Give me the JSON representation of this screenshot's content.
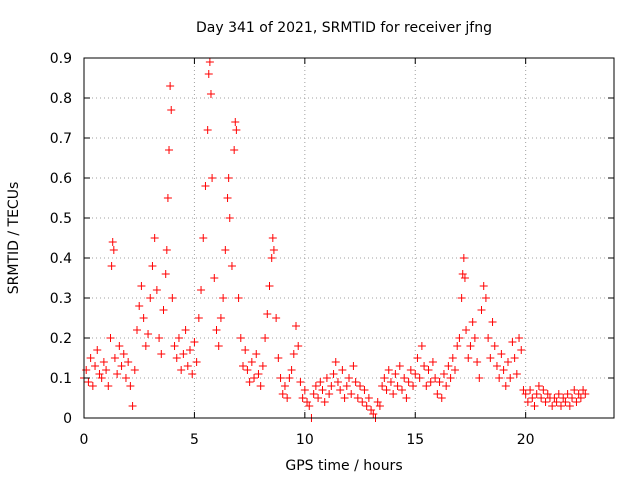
{
  "chart_data": {
    "type": "scatter",
    "title": "Day 341 of 2021, SRMTID for receiver jfng",
    "xlabel": "GPS time / hours",
    "ylabel": "SRMTID / TECUs",
    "xlim": [
      0,
      24
    ],
    "ylim": [
      0,
      0.9
    ],
    "x_ticks": [
      0,
      5,
      10,
      15,
      20
    ],
    "y_ticks": [
      0,
      0.1,
      0.2,
      0.3,
      0.4,
      0.5,
      0.6,
      0.7,
      0.8,
      0.9
    ],
    "x_tick_labels": [
      "0",
      "5",
      "10",
      "15",
      "20"
    ],
    "y_tick_labels": [
      "0",
      "0.1",
      "0.2",
      "0.3",
      "0.4",
      "0.5",
      "0.6",
      "0.7",
      "0.8",
      "0.9"
    ],
    "grid": true,
    "marker": "plus",
    "color": "#ff0000",
    "series": [
      {
        "name": "SRMTID",
        "points": [
          [
            0.0,
            0.1
          ],
          [
            0.1,
            0.12
          ],
          [
            0.2,
            0.09
          ],
          [
            0.3,
            0.15
          ],
          [
            0.4,
            0.08
          ],
          [
            0.5,
            0.13
          ],
          [
            0.6,
            0.17
          ],
          [
            0.7,
            0.11
          ],
          [
            0.8,
            0.1
          ],
          [
            0.9,
            0.14
          ],
          [
            1.0,
            0.12
          ],
          [
            1.1,
            0.08
          ],
          [
            1.2,
            0.2
          ],
          [
            1.25,
            0.38
          ],
          [
            1.3,
            0.44
          ],
          [
            1.35,
            0.42
          ],
          [
            1.4,
            0.15
          ],
          [
            1.5,
            0.11
          ],
          [
            1.6,
            0.18
          ],
          [
            1.7,
            0.13
          ],
          [
            1.8,
            0.16
          ],
          [
            1.9,
            0.1
          ],
          [
            2.0,
            0.14
          ],
          [
            2.1,
            0.08
          ],
          [
            2.2,
            0.03
          ],
          [
            2.3,
            0.12
          ],
          [
            2.4,
            0.22
          ],
          [
            2.5,
            0.28
          ],
          [
            2.6,
            0.33
          ],
          [
            2.7,
            0.25
          ],
          [
            2.8,
            0.18
          ],
          [
            2.9,
            0.21
          ],
          [
            3.0,
            0.3
          ],
          [
            3.1,
            0.38
          ],
          [
            3.2,
            0.45
          ],
          [
            3.3,
            0.32
          ],
          [
            3.4,
            0.2
          ],
          [
            3.5,
            0.16
          ],
          [
            3.6,
            0.27
          ],
          [
            3.7,
            0.36
          ],
          [
            3.75,
            0.42
          ],
          [
            3.8,
            0.55
          ],
          [
            3.85,
            0.67
          ],
          [
            3.9,
            0.83
          ],
          [
            3.95,
            0.77
          ],
          [
            4.0,
            0.3
          ],
          [
            4.1,
            0.18
          ],
          [
            4.2,
            0.15
          ],
          [
            4.3,
            0.2
          ],
          [
            4.4,
            0.12
          ],
          [
            4.5,
            0.16
          ],
          [
            4.6,
            0.22
          ],
          [
            4.7,
            0.13
          ],
          [
            4.8,
            0.17
          ],
          [
            4.9,
            0.11
          ],
          [
            5.0,
            0.19
          ],
          [
            5.1,
            0.14
          ],
          [
            5.2,
            0.25
          ],
          [
            5.3,
            0.32
          ],
          [
            5.4,
            0.45
          ],
          [
            5.5,
            0.58
          ],
          [
            5.6,
            0.72
          ],
          [
            5.65,
            0.86
          ],
          [
            5.7,
            0.89
          ],
          [
            5.75,
            0.81
          ],
          [
            5.8,
            0.6
          ],
          [
            5.9,
            0.35
          ],
          [
            6.0,
            0.22
          ],
          [
            6.1,
            0.18
          ],
          [
            6.2,
            0.25
          ],
          [
            6.3,
            0.3
          ],
          [
            6.4,
            0.42
          ],
          [
            6.5,
            0.55
          ],
          [
            6.55,
            0.6
          ],
          [
            6.6,
            0.5
          ],
          [
            6.7,
            0.38
          ],
          [
            6.8,
            0.67
          ],
          [
            6.85,
            0.74
          ],
          [
            6.9,
            0.72
          ],
          [
            7.0,
            0.3
          ],
          [
            7.1,
            0.2
          ],
          [
            7.2,
            0.13
          ],
          [
            7.3,
            0.17
          ],
          [
            7.4,
            0.12
          ],
          [
            7.5,
            0.09
          ],
          [
            7.6,
            0.14
          ],
          [
            7.7,
            0.1
          ],
          [
            7.8,
            0.16
          ],
          [
            7.9,
            0.11
          ],
          [
            8.0,
            0.08
          ],
          [
            8.1,
            0.13
          ],
          [
            8.2,
            0.2
          ],
          [
            8.3,
            0.26
          ],
          [
            8.4,
            0.33
          ],
          [
            8.5,
            0.4
          ],
          [
            8.55,
            0.45
          ],
          [
            8.6,
            0.42
          ],
          [
            8.7,
            0.25
          ],
          [
            8.8,
            0.15
          ],
          [
            8.9,
            0.1
          ],
          [
            9.0,
            0.06
          ],
          [
            9.1,
            0.08
          ],
          [
            9.2,
            0.05
          ],
          [
            9.3,
            0.1
          ],
          [
            9.4,
            0.12
          ],
          [
            9.5,
            0.16
          ],
          [
            9.6,
            0.23
          ],
          [
            9.7,
            0.18
          ],
          [
            9.8,
            0.09
          ],
          [
            9.9,
            0.05
          ],
          [
            10.0,
            0.07
          ],
          [
            10.1,
            0.04
          ],
          [
            10.2,
            0.03
          ],
          [
            10.3,
            0.0
          ],
          [
            10.4,
            0.06
          ],
          [
            10.5,
            0.08
          ],
          [
            10.6,
            0.05
          ],
          [
            10.7,
            0.09
          ],
          [
            10.8,
            0.07
          ],
          [
            10.9,
            0.04
          ],
          [
            11.0,
            0.1
          ],
          [
            11.1,
            0.06
          ],
          [
            11.2,
            0.08
          ],
          [
            11.3,
            0.11
          ],
          [
            11.4,
            0.14
          ],
          [
            11.5,
            0.09
          ],
          [
            11.6,
            0.07
          ],
          [
            11.7,
            0.12
          ],
          [
            11.8,
            0.05
          ],
          [
            11.9,
            0.08
          ],
          [
            12.0,
            0.1
          ],
          [
            12.1,
            0.06
          ],
          [
            12.2,
            0.13
          ],
          [
            12.3,
            0.09
          ],
          [
            12.4,
            0.05
          ],
          [
            12.5,
            0.08
          ],
          [
            12.6,
            0.04
          ],
          [
            12.7,
            0.07
          ],
          [
            12.8,
            0.03
          ],
          [
            12.9,
            0.05
          ],
          [
            13.0,
            0.02
          ],
          [
            13.1,
            0.01
          ],
          [
            13.2,
            0.0
          ],
          [
            13.3,
            0.04
          ],
          [
            13.4,
            0.03
          ],
          [
            13.5,
            0.08
          ],
          [
            13.6,
            0.1
          ],
          [
            13.7,
            0.07
          ],
          [
            13.8,
            0.12
          ],
          [
            13.9,
            0.09
          ],
          [
            14.0,
            0.06
          ],
          [
            14.1,
            0.11
          ],
          [
            14.2,
            0.08
          ],
          [
            14.3,
            0.13
          ],
          [
            14.4,
            0.07
          ],
          [
            14.5,
            0.1
          ],
          [
            14.6,
            0.05
          ],
          [
            14.7,
            0.09
          ],
          [
            14.8,
            0.12
          ],
          [
            14.9,
            0.08
          ],
          [
            15.0,
            0.11
          ],
          [
            15.1,
            0.15
          ],
          [
            15.2,
            0.1
          ],
          [
            15.3,
            0.18
          ],
          [
            15.4,
            0.13
          ],
          [
            15.5,
            0.08
          ],
          [
            15.6,
            0.12
          ],
          [
            15.7,
            0.09
          ],
          [
            15.8,
            0.14
          ],
          [
            15.9,
            0.1
          ],
          [
            16.0,
            0.06
          ],
          [
            16.1,
            0.09
          ],
          [
            16.2,
            0.05
          ],
          [
            16.3,
            0.11
          ],
          [
            16.4,
            0.08
          ],
          [
            16.5,
            0.13
          ],
          [
            16.6,
            0.1
          ],
          [
            16.7,
            0.15
          ],
          [
            16.8,
            0.12
          ],
          [
            16.9,
            0.18
          ],
          [
            17.0,
            0.2
          ],
          [
            17.1,
            0.3
          ],
          [
            17.15,
            0.36
          ],
          [
            17.2,
            0.4
          ],
          [
            17.25,
            0.35
          ],
          [
            17.3,
            0.22
          ],
          [
            17.4,
            0.15
          ],
          [
            17.5,
            0.18
          ],
          [
            17.6,
            0.24
          ],
          [
            17.7,
            0.2
          ],
          [
            17.8,
            0.14
          ],
          [
            17.9,
            0.1
          ],
          [
            18.0,
            0.27
          ],
          [
            18.1,
            0.33
          ],
          [
            18.2,
            0.3
          ],
          [
            18.3,
            0.2
          ],
          [
            18.4,
            0.15
          ],
          [
            18.5,
            0.24
          ],
          [
            18.6,
            0.18
          ],
          [
            18.7,
            0.13
          ],
          [
            18.8,
            0.1
          ],
          [
            18.9,
            0.16
          ],
          [
            19.0,
            0.12
          ],
          [
            19.1,
            0.08
          ],
          [
            19.2,
            0.14
          ],
          [
            19.3,
            0.1
          ],
          [
            19.4,
            0.19
          ],
          [
            19.5,
            0.15
          ],
          [
            19.6,
            0.11
          ],
          [
            19.7,
            0.2
          ],
          [
            19.8,
            0.17
          ],
          [
            19.9,
            0.07
          ],
          [
            20.0,
            0.06
          ],
          [
            20.1,
            0.04
          ],
          [
            20.2,
            0.07
          ],
          [
            20.3,
            0.05
          ],
          [
            20.4,
            0.03
          ],
          [
            20.5,
            0.06
          ],
          [
            20.6,
            0.08
          ],
          [
            20.7,
            0.05
          ],
          [
            20.8,
            0.07
          ],
          [
            20.9,
            0.04
          ],
          [
            21.0,
            0.06
          ],
          [
            21.1,
            0.05
          ],
          [
            21.2,
            0.03
          ],
          [
            21.3,
            0.05
          ],
          [
            21.4,
            0.04
          ],
          [
            21.5,
            0.06
          ],
          [
            21.6,
            0.03
          ],
          [
            21.7,
            0.05
          ],
          [
            21.8,
            0.04
          ],
          [
            21.9,
            0.06
          ],
          [
            22.0,
            0.03
          ],
          [
            22.1,
            0.05
          ],
          [
            22.2,
            0.07
          ],
          [
            22.3,
            0.04
          ],
          [
            22.4,
            0.06
          ],
          [
            22.5,
            0.05
          ],
          [
            22.6,
            0.07
          ],
          [
            22.7,
            0.06
          ]
        ]
      }
    ]
  }
}
